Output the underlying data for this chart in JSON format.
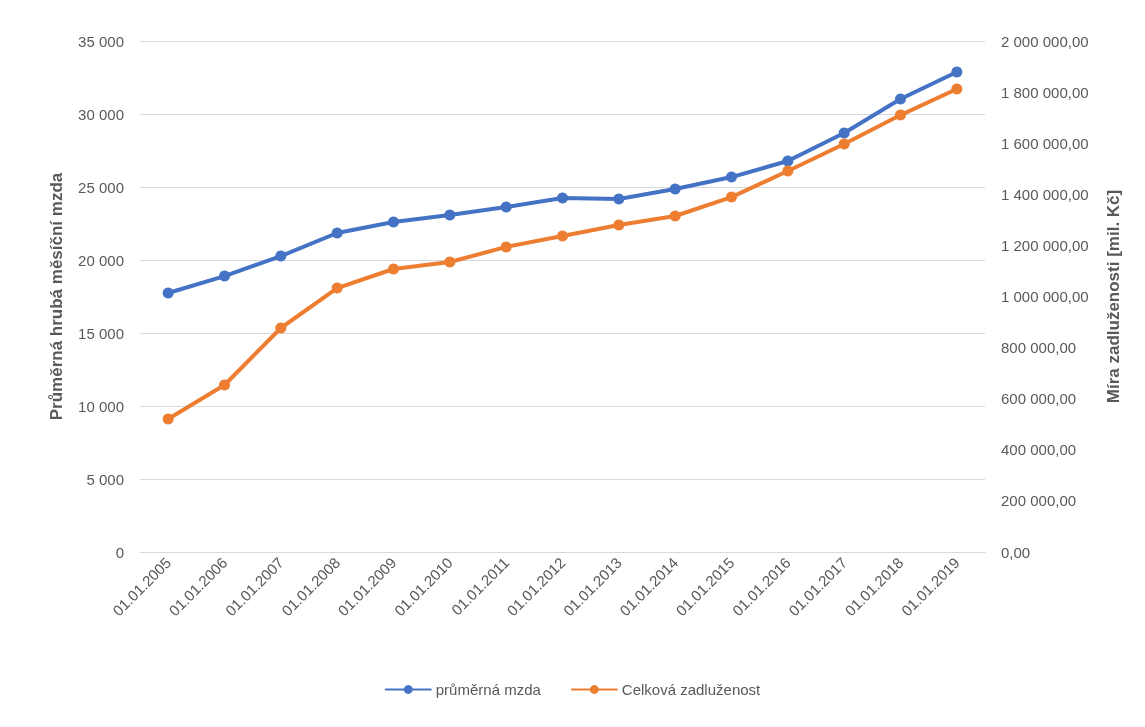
{
  "chart_data": {
    "type": "line",
    "ylabel": "Průměrná hrubá měsíční mzda",
    "y2label": "Míra zadluženosti [mil. Kč]",
    "categories": [
      "01.01.2005",
      "01.01.2006",
      "01.01.2007",
      "01.01.2008",
      "01.01.2009",
      "01.01.2010",
      "01.01.2011",
      "01.01.2012",
      "01.01.2013",
      "01.01.2014",
      "01.01.2015",
      "01.01.2016",
      "01.01.2017",
      "01.01.2018",
      "01.01.2019"
    ],
    "series": [
      {
        "name": "průměrná mzda",
        "color": "#4472c4",
        "values": [
          17740,
          18900,
          20270,
          21850,
          22600,
          23080,
          23630,
          24250,
          24180,
          24860,
          25680,
          26780,
          28700,
          31030,
          32880
        ]
      },
      {
        "name": "Celková zadluženost",
        "color": "#ed7d31",
        "axis": "y2",
        "values": [
          520600,
          653600,
          876700,
          1033000,
          1107700,
          1135000,
          1194000,
          1237000,
          1280000,
          1315000,
          1389000,
          1491000,
          1597000,
          1710000,
          1812000
        ]
      }
    ],
    "ylim": [
      0,
      35000
    ],
    "yticks": [
      0,
      {
        "value": 5000,
        "label": "5 000"
      },
      {
        "value": 10000,
        "label": "10 000"
      },
      {
        "value": 15000,
        "label": "15 000"
      },
      {
        "value": 20000,
        "label": "20 000"
      },
      {
        "value": 25000,
        "label": "25 000"
      },
      {
        "value": 30000,
        "label": "30 000"
      },
      {
        "value": 35000,
        "label": "35 000"
      }
    ],
    "y2lim": [
      0,
      2000000
    ],
    "y2ticks": [
      {
        "value": 0,
        "label": "0,00"
      },
      {
        "value": 200000,
        "label": "200 000,00"
      },
      {
        "value": 400000,
        "label": "400 000,00"
      },
      {
        "value": 600000,
        "label": "600 000,00"
      },
      {
        "value": 800000,
        "label": "800 000,00"
      },
      {
        "value": 1000000,
        "label": "1 000 000,00"
      },
      {
        "value": 1200000,
        "label": "1 200 000,00"
      },
      {
        "value": 1400000,
        "label": "1 400 000,00"
      },
      {
        "value": 1600000,
        "label": "1 600 000,00"
      },
      {
        "value": 1800000,
        "label": "1 800 000,00"
      },
      {
        "value": 2000000,
        "label": "2 000 000,00"
      }
    ],
    "grid": "y",
    "legend": "bottom",
    "marker": "circle",
    "line_style": "solid"
  }
}
